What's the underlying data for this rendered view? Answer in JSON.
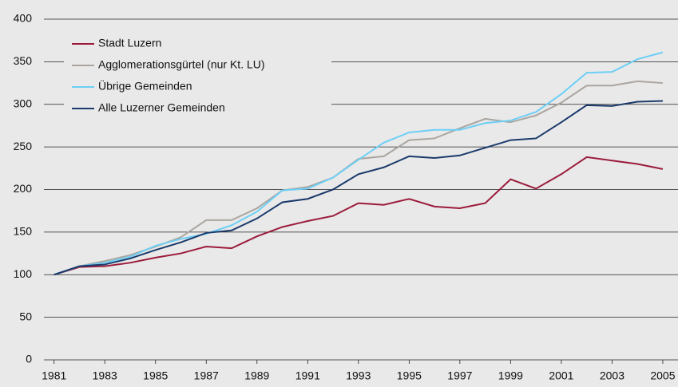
{
  "chart_data": {
    "type": "line",
    "x": [
      1981,
      1982,
      1983,
      1984,
      1985,
      1986,
      1987,
      1988,
      1989,
      1990,
      1991,
      1992,
      1993,
      1994,
      1995,
      1996,
      1997,
      1998,
      1999,
      2000,
      2001,
      2002,
      2003,
      2004,
      2005
    ],
    "series": [
      {
        "name": "Stadt Luzern",
        "color": "#9b1b3a",
        "values": [
          100,
          109,
          110,
          114,
          120,
          125,
          133,
          131,
          145,
          156,
          163,
          169,
          184,
          182,
          189,
          180,
          178,
          184,
          212,
          201,
          218,
          238,
          234,
          230,
          224
        ]
      },
      {
        "name": "Agglomerationsgürtel (nur Kt. LU)",
        "color": "#aaa5a0",
        "values": [
          100,
          110,
          116,
          123,
          133,
          144,
          164,
          164,
          178,
          199,
          203,
          214,
          236,
          239,
          258,
          260,
          272,
          283,
          279,
          287,
          302,
          322,
          322,
          327,
          325
        ]
      },
      {
        "name": "Übrige Gemeinden",
        "color": "#6dcff6",
        "values": [
          100,
          110,
          114,
          121,
          134,
          142,
          148,
          158,
          174,
          199,
          201,
          214,
          235,
          255,
          267,
          270,
          270,
          278,
          281,
          291,
          312,
          337,
          338,
          353,
          361
        ]
      },
      {
        "name": "Alle Luzerner Gemeinden",
        "color": "#1a3a6b",
        "values": [
          100,
          110,
          112,
          119,
          129,
          138,
          149,
          152,
          166,
          185,
          189,
          200,
          218,
          226,
          239,
          237,
          240,
          249,
          258,
          260,
          279,
          299,
          298,
          303,
          304
        ]
      }
    ],
    "xlim": [
      1980.6,
      2005.6
    ],
    "xticks": [
      1981,
      1983,
      1985,
      1987,
      1989,
      1991,
      1993,
      1995,
      1997,
      1999,
      2001,
      2003,
      2005
    ],
    "ylim": [
      0,
      400
    ],
    "yticks": [
      0,
      50,
      100,
      150,
      200,
      250,
      300,
      350,
      400
    ],
    "grid": true,
    "legend": "upper-left"
  }
}
